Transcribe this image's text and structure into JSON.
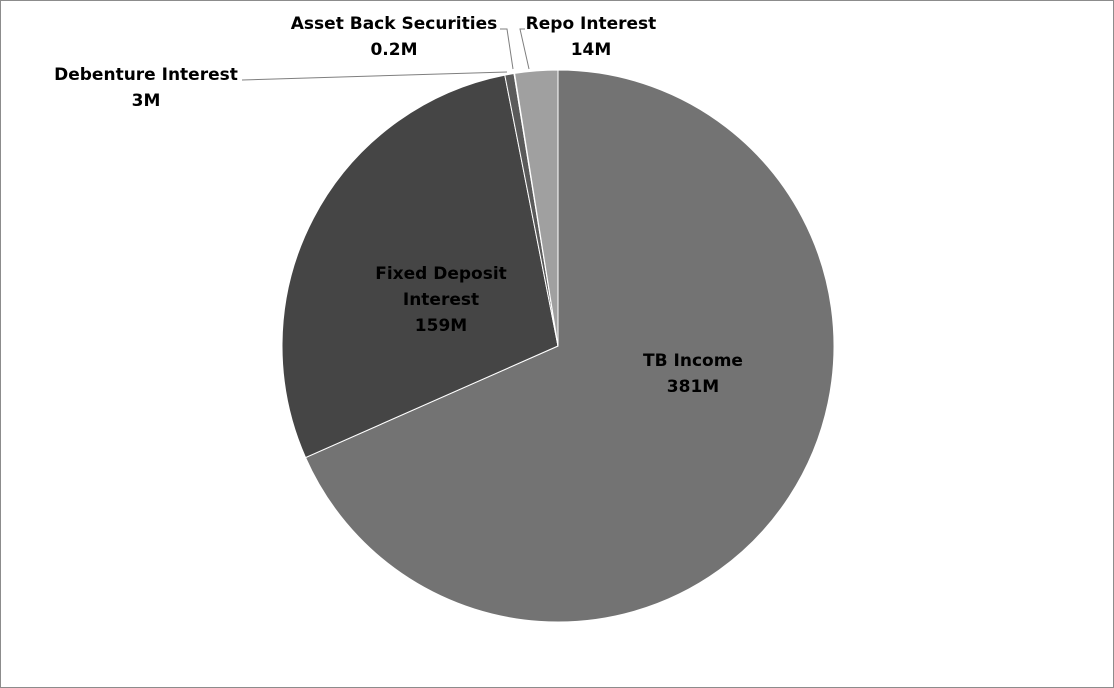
{
  "chart_data": {
    "type": "pie",
    "start_angle_deg": 0,
    "direction": "clockwise",
    "slices": [
      {
        "label": "TB Income",
        "value": 381,
        "value_label": "381M",
        "color": "#737373"
      },
      {
        "label": "Fixed Deposit Interest",
        "value": 159,
        "value_label": "159M",
        "color": "#454545"
      },
      {
        "label": "Debenture Interest",
        "value": 3,
        "value_label": "3M",
        "color": "#5a5a5a"
      },
      {
        "label": "Asset Back Securities",
        "value": 0.2,
        "value_label": "0.2M",
        "color": "#8a8a8a"
      },
      {
        "label": "Repo Interest",
        "value": 14,
        "value_label": "14M",
        "color": "#a0a0a0"
      }
    ],
    "slice_border_color": "#ffffff",
    "frame_border_color": "#8c8c8c",
    "legend": "none"
  }
}
